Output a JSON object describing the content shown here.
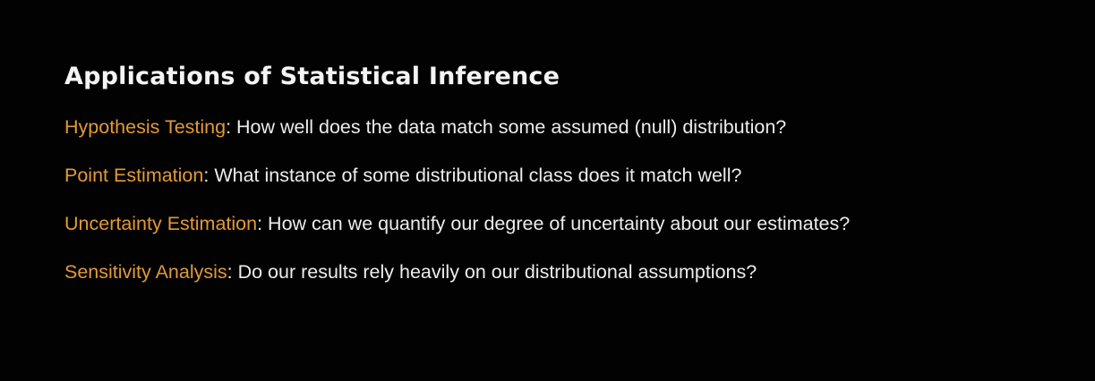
{
  "slide": {
    "title": "Applications of Statistical Inference",
    "items": [
      {
        "term": "Hypothesis Testing",
        "separator": ":",
        "description": " How well does the data match some assumed (null) distribution?"
      },
      {
        "term": "Point Estimation",
        "separator": ":",
        "description": " What instance of some distributional class does it match well?"
      },
      {
        "term": "Uncertainty Estimation",
        "separator": ":",
        "description": " How can we quantify our degree of uncertainty about our estimates?"
      },
      {
        "term": "Sensitivity Analysis",
        "separator": ":",
        "description": " Do our results rely heavily on our distributional assumptions?"
      }
    ]
  },
  "colors": {
    "background": "#020202",
    "title": "#f4f4f4",
    "term_accent": "#e29a35",
    "body_text": "#ededed"
  }
}
